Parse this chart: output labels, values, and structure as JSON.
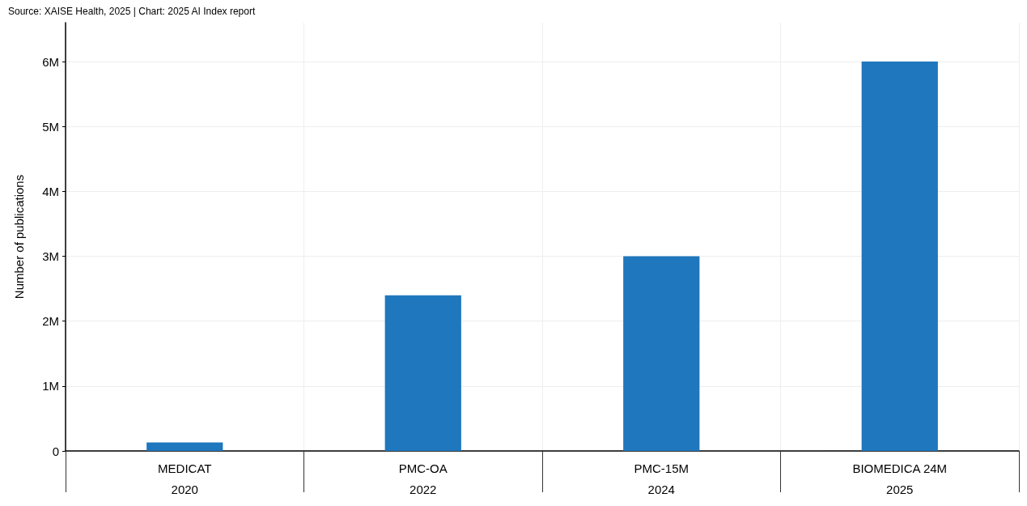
{
  "chart_data": {
    "type": "bar",
    "ylabel": "Number of publications",
    "annotations": [
      "Source: XAISE Health, 2025 | Chart: 2025 AI Index report"
    ],
    "categories": [
      "MEDICAT\n2020",
      "PMC-OA\n2022",
      "PMC-15M\n2024",
      "BIOMEDICA 24M\n2025"
    ],
    "values": [
      130000,
      2400000,
      3000000,
      6000000
    ],
    "color": "#1f77bd",
    "ylim": [
      0,
      6600000
    ],
    "yticks": [
      0,
      {
        "value": 1000000,
        "label": "1M"
      },
      {
        "value": 2000000,
        "label": "2M"
      },
      {
        "value": 3000000,
        "label": "3M"
      },
      {
        "value": 4000000,
        "label": "4M"
      },
      {
        "value": 5000000,
        "label": "5M"
      },
      {
        "value": 6000000,
        "label": "6M"
      }
    ],
    "grid": true
  }
}
